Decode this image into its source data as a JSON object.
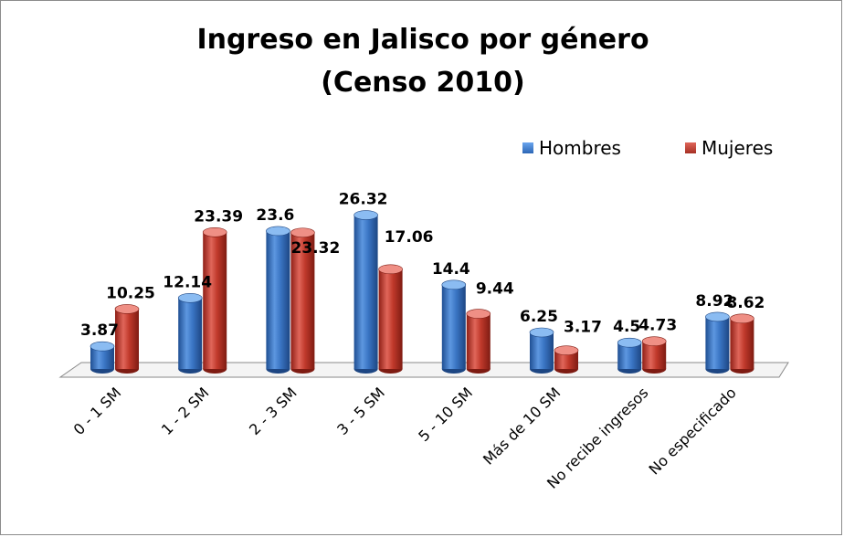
{
  "chart_data": {
    "type": "bar",
    "title_lines": [
      "Ingreso en Jalisco por género",
      "(Censo 2010)"
    ],
    "categories": [
      "0 - 1 SM",
      "1 - 2 SM",
      "2 - 3 SM",
      "3 - 5 SM",
      "5 - 10 SM",
      "Más de 10 SM",
      "No recibe ingresos",
      "No especificado"
    ],
    "series": [
      {
        "name": "Hombres",
        "values": [
          3.87,
          12.14,
          23.6,
          26.32,
          14.4,
          6.25,
          4.5,
          8.92
        ],
        "color": "#3a75c4"
      },
      {
        "name": "Mujeres",
        "values": [
          10.25,
          23.39,
          23.32,
          17.06,
          9.44,
          3.17,
          4.73,
          8.62
        ],
        "color": "#c0392b"
      }
    ],
    "ylim": [
      0,
      28
    ],
    "legend_position": "top-right",
    "grid": false,
    "bar_style": "3d-cylinder"
  }
}
